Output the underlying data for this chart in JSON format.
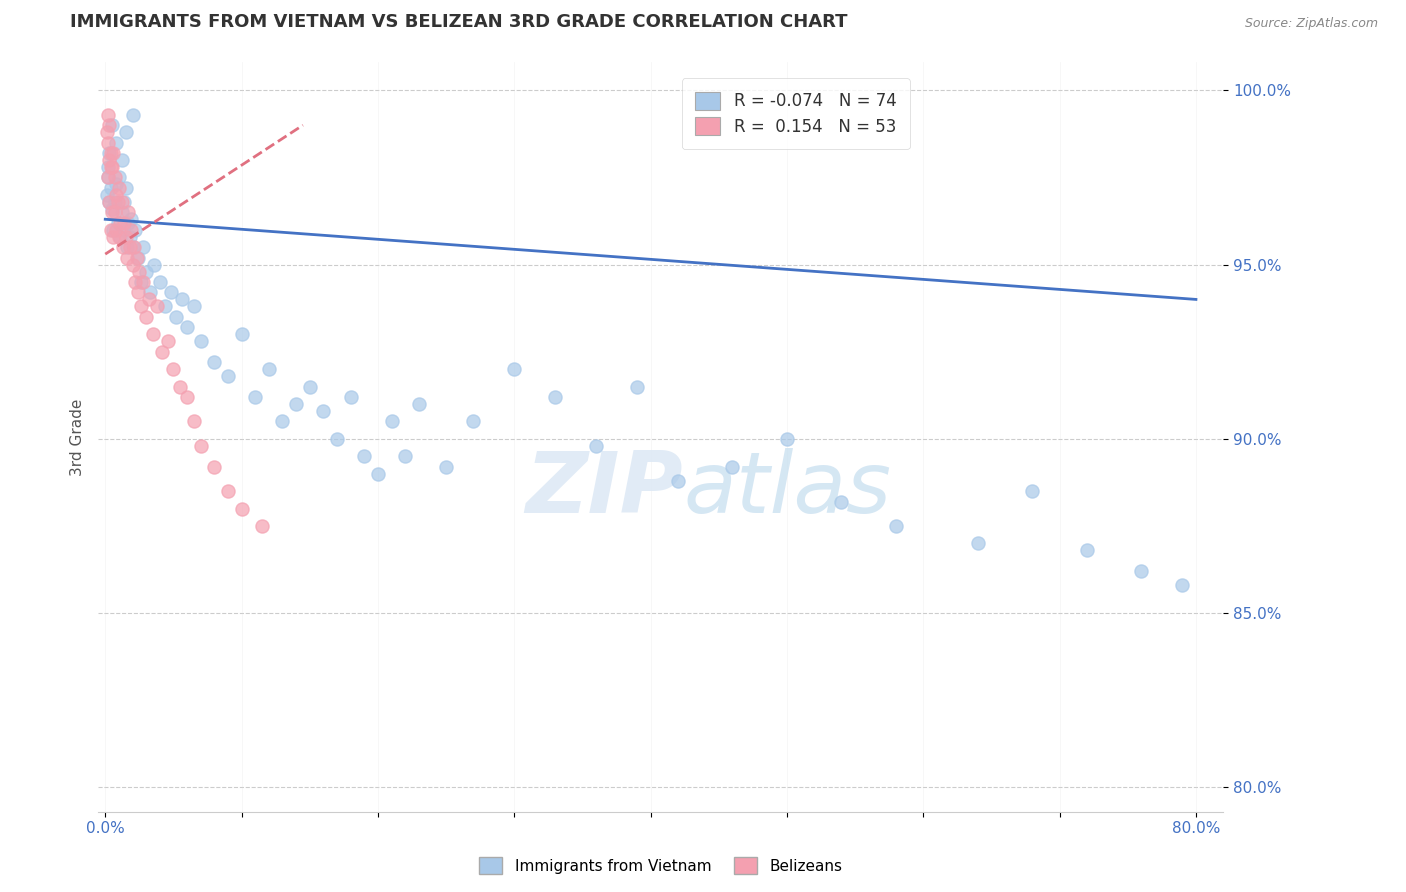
{
  "title": "IMMIGRANTS FROM VIETNAM VS BELIZEAN 3RD GRADE CORRELATION CHART",
  "source": "Source: ZipAtlas.com",
  "ylabel": "3rd Grade",
  "xlim": [
    -0.005,
    0.82
  ],
  "ylim": [
    0.793,
    1.008
  ],
  "xtick_vals": [
    0.0,
    0.1,
    0.2,
    0.3,
    0.4,
    0.5,
    0.6,
    0.7,
    0.8
  ],
  "ytick_vals": [
    0.8,
    0.85,
    0.9,
    0.95,
    1.0
  ],
  "blue_R": -0.074,
  "blue_N": 74,
  "pink_R": 0.154,
  "pink_N": 53,
  "blue_color": "#a8c8e8",
  "pink_color": "#f4a0b0",
  "trend_blue_color": "#4472c4",
  "trend_pink_color": "#e07080",
  "legend_blue_label": "Immigrants from Vietnam",
  "legend_pink_label": "Belizeans",
  "blue_trend_x": [
    0.0,
    0.8
  ],
  "blue_trend_y": [
    0.963,
    0.94
  ],
  "pink_trend_x": [
    0.0,
    0.145
  ],
  "pink_trend_y": [
    0.953,
    0.99
  ],
  "blue_x": [
    0.001,
    0.002,
    0.003,
    0.004,
    0.005,
    0.006,
    0.007,
    0.008,
    0.009,
    0.01,
    0.011,
    0.012,
    0.013,
    0.014,
    0.015,
    0.016,
    0.017,
    0.018,
    0.019,
    0.02,
    0.022,
    0.024,
    0.026,
    0.028,
    0.03,
    0.033,
    0.036,
    0.04,
    0.044,
    0.048,
    0.052,
    0.056,
    0.06,
    0.065,
    0.07,
    0.08,
    0.09,
    0.1,
    0.11,
    0.12,
    0.13,
    0.14,
    0.15,
    0.16,
    0.17,
    0.18,
    0.19,
    0.2,
    0.21,
    0.22,
    0.23,
    0.25,
    0.27,
    0.3,
    0.33,
    0.36,
    0.39,
    0.42,
    0.46,
    0.5,
    0.54,
    0.58,
    0.64,
    0.68,
    0.72,
    0.76,
    0.79,
    0.012,
    0.008,
    0.005,
    0.003,
    0.002,
    0.015,
    0.02
  ],
  "blue_y": [
    0.97,
    0.975,
    0.968,
    0.972,
    0.966,
    0.96,
    0.968,
    0.973,
    0.962,
    0.975,
    0.958,
    0.965,
    0.96,
    0.968,
    0.972,
    0.955,
    0.962,
    0.958,
    0.963,
    0.955,
    0.96,
    0.952,
    0.945,
    0.955,
    0.948,
    0.942,
    0.95,
    0.945,
    0.938,
    0.942,
    0.935,
    0.94,
    0.932,
    0.938,
    0.928,
    0.922,
    0.918,
    0.93,
    0.912,
    0.92,
    0.905,
    0.91,
    0.915,
    0.908,
    0.9,
    0.912,
    0.895,
    0.89,
    0.905,
    0.895,
    0.91,
    0.892,
    0.905,
    0.92,
    0.912,
    0.898,
    0.915,
    0.888,
    0.892,
    0.9,
    0.882,
    0.875,
    0.87,
    0.885,
    0.868,
    0.862,
    0.858,
    0.98,
    0.985,
    0.99,
    0.982,
    0.978,
    0.988,
    0.993
  ],
  "pink_x": [
    0.001,
    0.002,
    0.002,
    0.003,
    0.003,
    0.004,
    0.004,
    0.005,
    0.005,
    0.006,
    0.006,
    0.007,
    0.007,
    0.008,
    0.008,
    0.009,
    0.01,
    0.01,
    0.011,
    0.012,
    0.013,
    0.014,
    0.015,
    0.016,
    0.017,
    0.018,
    0.019,
    0.02,
    0.021,
    0.022,
    0.023,
    0.024,
    0.025,
    0.026,
    0.028,
    0.03,
    0.032,
    0.035,
    0.038,
    0.042,
    0.046,
    0.05,
    0.055,
    0.06,
    0.065,
    0.07,
    0.08,
    0.09,
    0.1,
    0.115,
    0.002,
    0.003,
    0.004
  ],
  "pink_y": [
    0.988,
    0.985,
    0.975,
    0.98,
    0.968,
    0.982,
    0.96,
    0.978,
    0.965,
    0.982,
    0.958,
    0.975,
    0.965,
    0.97,
    0.96,
    0.968,
    0.972,
    0.958,
    0.962,
    0.968,
    0.955,
    0.962,
    0.958,
    0.952,
    0.965,
    0.955,
    0.96,
    0.95,
    0.955,
    0.945,
    0.952,
    0.942,
    0.948,
    0.938,
    0.945,
    0.935,
    0.94,
    0.93,
    0.938,
    0.925,
    0.928,
    0.92,
    0.915,
    0.912,
    0.905,
    0.898,
    0.892,
    0.885,
    0.88,
    0.875,
    0.993,
    0.99,
    0.978
  ]
}
